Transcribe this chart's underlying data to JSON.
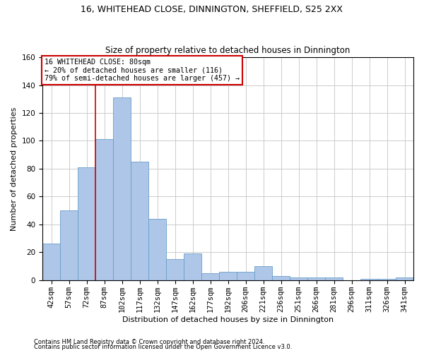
{
  "title1": "16, WHITEHEAD CLOSE, DINNINGTON, SHEFFIELD, S25 2XX",
  "title2": "Size of property relative to detached houses in Dinnington",
  "xlabel": "Distribution of detached houses by size in Dinnington",
  "ylabel": "Number of detached properties",
  "categories": [
    "42sqm",
    "57sqm",
    "72sqm",
    "87sqm",
    "102sqm",
    "117sqm",
    "132sqm",
    "147sqm",
    "162sqm",
    "177sqm",
    "192sqm",
    "206sqm",
    "221sqm",
    "236sqm",
    "251sqm",
    "266sqm",
    "281sqm",
    "296sqm",
    "311sqm",
    "326sqm",
    "341sqm"
  ],
  "values": [
    26,
    50,
    81,
    101,
    131,
    85,
    44,
    15,
    19,
    5,
    6,
    6,
    10,
    3,
    2,
    2,
    2,
    0,
    1,
    1,
    2
  ],
  "bar_color": "#aec6e8",
  "bar_edge_color": "#6a9fc8",
  "vline_x": 2.5,
  "vline_color": "#cc0000",
  "annotation_text": "16 WHITEHEAD CLOSE: 80sqm\n← 20% of detached houses are smaller (116)\n79% of semi-detached houses are larger (457) →",
  "annotation_box_color": "#ffffff",
  "annotation_box_edge": "#cc0000",
  "footer1": "Contains HM Land Registry data © Crown copyright and database right 2024.",
  "footer2": "Contains public sector information licensed under the Open Government Licence v3.0.",
  "background_color": "#ffffff",
  "grid_color": "#cccccc",
  "ylim": [
    0,
    160
  ],
  "yticks": [
    0,
    20,
    40,
    60,
    80,
    100,
    120,
    140,
    160
  ]
}
